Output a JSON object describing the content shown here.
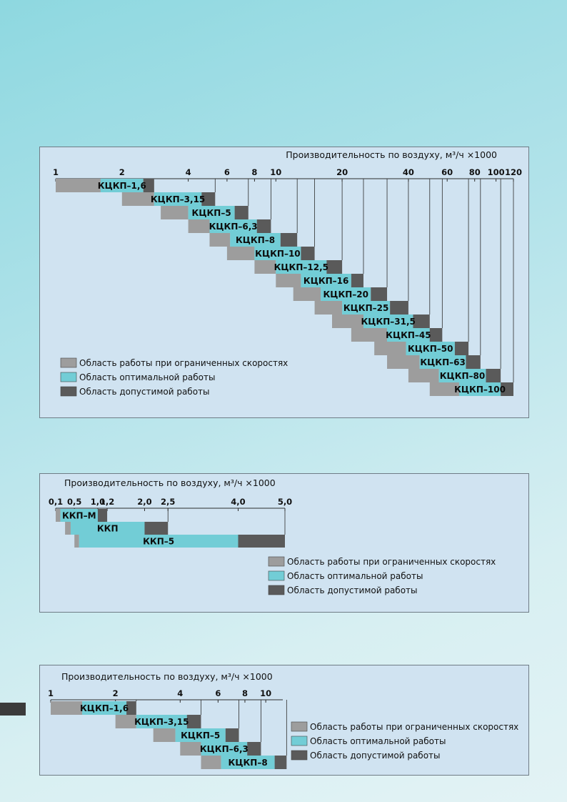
{
  "colors": {
    "limited": "#9d9d9d",
    "optimal": "#72cdd6",
    "allowed": "#5a5a5a",
    "gridline": "#2d2d2d",
    "panel_bg": "#d0e3f1"
  },
  "legend": {
    "limited": "Область работы при ограниченных скоростях",
    "optimal": "Область оптимальной работы",
    "allowed": "Область допустимой работы"
  },
  "chart_data": [
    {
      "type": "bar",
      "subtype": "range-gantt",
      "title": "Производительность по воздуху, м³/ч ×1000",
      "x_scale": "log",
      "xlim": [
        1,
        120
      ],
      "ticks": [
        1,
        2,
        4,
        6,
        8,
        10,
        20,
        40,
        60,
        80,
        100,
        120
      ],
      "tick_labels": [
        "1",
        "2",
        "4",
        "6",
        "8",
        "10",
        "20",
        "40",
        "60",
        "80",
        "100",
        "120"
      ],
      "series": [
        {
          "name": "КЦКП–1,6",
          "limited": [
            1.0,
            1.6
          ],
          "optimal": [
            1.6,
            2.5
          ],
          "allowed": [
            2.5,
            2.8
          ]
        },
        {
          "name": "КЦКП–3,15",
          "limited": [
            2.0,
            2.8
          ],
          "optimal": [
            2.8,
            4.6
          ],
          "allowed": [
            4.6,
            5.3
          ]
        },
        {
          "name": "КЦКП–5",
          "limited": [
            3.0,
            4.0
          ],
          "optimal": [
            4.0,
            6.5
          ],
          "allowed": [
            6.5,
            7.5
          ]
        },
        {
          "name": "КЦКП–6,3",
          "limited": [
            4.0,
            5.0
          ],
          "optimal": [
            5.0,
            8.2
          ],
          "allowed": [
            8.2,
            9.5
          ]
        },
        {
          "name": "КЦКП–8",
          "limited": [
            5.0,
            6.2
          ],
          "optimal": [
            6.2,
            10.5
          ],
          "allowed": [
            10.5,
            12.5
          ]
        },
        {
          "name": "КЦКП–10",
          "limited": [
            6.0,
            8.0
          ],
          "optimal": [
            8.0,
            13.0
          ],
          "allowed": [
            13.0,
            15.0
          ]
        },
        {
          "name": "КЦКП–12,5",
          "limited": [
            8.0,
            10.0
          ],
          "optimal": [
            10.0,
            17.0
          ],
          "allowed": [
            17.0,
            20.0
          ]
        },
        {
          "name": "КЦКП–16",
          "limited": [
            10.0,
            13.0
          ],
          "optimal": [
            13.0,
            22.0
          ],
          "allowed": [
            22.0,
            25.0
          ]
        },
        {
          "name": "КЦКП–20",
          "limited": [
            12.0,
            16.0
          ],
          "optimal": [
            16.0,
            27.0
          ],
          "allowed": [
            27.0,
            32.0
          ]
        },
        {
          "name": "КЦКП–25",
          "limited": [
            15.0,
            20.0
          ],
          "optimal": [
            20.0,
            33.0
          ],
          "allowed": [
            33.0,
            40.0
          ]
        },
        {
          "name": "КЦКП–31,5",
          "limited": [
            18.0,
            25.0
          ],
          "optimal": [
            25.0,
            42.0
          ],
          "allowed": [
            42.0,
            50.0
          ]
        },
        {
          "name": "КЦКП–45",
          "limited": [
            22.0,
            32.0
          ],
          "optimal": [
            32.0,
            50.0
          ],
          "allowed": [
            50.0,
            57.0
          ]
        },
        {
          "name": "КЦКП–50",
          "limited": [
            28.0,
            39.0
          ],
          "optimal": [
            39.0,
            65.0
          ],
          "allowed": [
            65.0,
            75.0
          ]
        },
        {
          "name": "КЦКП–63",
          "limited": [
            32.0,
            45.0
          ],
          "optimal": [
            45.0,
            73.0
          ],
          "allowed": [
            73.0,
            85.0
          ]
        },
        {
          "name": "КЦКП–80",
          "limited": [
            40.0,
            55.0
          ],
          "optimal": [
            55.0,
            90.0
          ],
          "allowed": [
            90.0,
            105.0
          ]
        },
        {
          "name": "КЦКП–100",
          "limited": [
            50.0,
            68.0
          ],
          "optimal": [
            68.0,
            105.0
          ],
          "allowed": [
            105.0,
            120.0
          ]
        }
      ]
    },
    {
      "type": "bar",
      "subtype": "range-gantt",
      "title": "Производительность по воздуху, м³/ч ×1000",
      "x_scale": "linear",
      "xlim": [
        0.1,
        5.0
      ],
      "ticks": [
        0.1,
        0.5,
        1.0,
        1.2,
        2.0,
        2.5,
        4.0,
        5.0
      ],
      "tick_labels": [
        "0,1",
        "0,5",
        "1,0",
        "1,2",
        "2,0",
        "2,5",
        "4,0",
        "5,0"
      ],
      "series": [
        {
          "name": "ККП–М",
          "limited": [
            0.1,
            0.2
          ],
          "optimal": [
            0.2,
            1.0
          ],
          "allowed": [
            1.0,
            1.2
          ]
        },
        {
          "name": "ККП",
          "limited": [
            0.3,
            0.42
          ],
          "optimal": [
            0.42,
            2.0
          ],
          "allowed": [
            2.0,
            2.5
          ]
        },
        {
          "name": "ККП–5",
          "limited": [
            0.5,
            0.6
          ],
          "optimal": [
            0.6,
            4.0
          ],
          "allowed": [
            4.0,
            5.0
          ]
        }
      ]
    },
    {
      "type": "bar",
      "subtype": "range-gantt",
      "title": "Производительность по воздуху, м³/ч ×1000",
      "x_scale": "log",
      "xlim": [
        1,
        12
      ],
      "ticks": [
        1,
        2,
        4,
        6,
        8,
        10
      ],
      "tick_labels": [
        "1",
        "2",
        "4",
        "6",
        "8",
        "10"
      ],
      "series": [
        {
          "name": "КЦКП–1,6",
          "limited": [
            1.0,
            1.4
          ],
          "optimal": [
            1.4,
            2.25
          ],
          "allowed": [
            2.25,
            2.5
          ]
        },
        {
          "name": "КЦКП–3,15",
          "limited": [
            2.0,
            2.5
          ],
          "optimal": [
            2.5,
            4.3
          ],
          "allowed": [
            4.3,
            5.0
          ]
        },
        {
          "name": "КЦКП–5",
          "limited": [
            3.0,
            3.8
          ],
          "optimal": [
            3.8,
            6.5
          ],
          "allowed": [
            6.5,
            7.5
          ]
        },
        {
          "name": "КЦКП–6,3",
          "limited": [
            4.0,
            5.0
          ],
          "optimal": [
            5.0,
            8.2
          ],
          "allowed": [
            8.2,
            9.5
          ]
        },
        {
          "name": "КЦКП–8",
          "limited": [
            5.0,
            6.2
          ],
          "optimal": [
            6.2,
            11.0
          ],
          "allowed": [
            11.0,
            12.5
          ]
        }
      ]
    }
  ]
}
